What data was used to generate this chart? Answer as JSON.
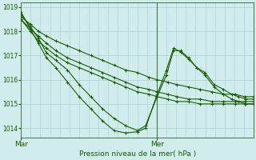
{
  "title": "Pression niveau de la mer( hPa )",
  "bg_color": "#d0ecec",
  "grid_color": "#b0d4d4",
  "line_color": "#1a5c00",
  "marker_color": "#1a5c00",
  "x_ticks_labels": [
    "Mar",
    "Mer"
  ],
  "x_ticks_pos": [
    0.0,
    0.585
  ],
  "ylim": [
    1013.6,
    1019.2
  ],
  "yticks": [
    1014,
    1015,
    1016,
    1017,
    1018,
    1019
  ],
  "vline_x": 0.585,
  "series": [
    {
      "x": [
        0.0,
        0.04,
        0.075,
        0.11,
        0.15,
        0.2,
        0.25,
        0.3,
        0.35,
        0.4,
        0.45,
        0.5,
        0.55,
        0.585,
        0.63,
        0.67,
        0.72,
        0.77,
        0.82,
        0.87,
        0.92,
        0.96,
        1.0
      ],
      "y": [
        1018.6,
        1018.3,
        1018.0,
        1017.8,
        1017.6,
        1017.4,
        1017.2,
        1017.0,
        1016.8,
        1016.6,
        1016.4,
        1016.3,
        1016.1,
        1016.0,
        1015.9,
        1015.8,
        1015.7,
        1015.6,
        1015.5,
        1015.4,
        1015.4,
        1015.3,
        1015.3
      ],
      "has_markers": true
    },
    {
      "x": [
        0.0,
        0.04,
        0.075,
        0.11,
        0.15,
        0.2,
        0.25,
        0.3,
        0.35,
        0.4,
        0.45,
        0.5,
        0.55,
        0.585,
        0.63,
        0.67,
        0.72,
        0.77,
        0.82,
        0.87,
        0.92,
        0.96,
        1.0
      ],
      "y": [
        1018.5,
        1018.1,
        1017.8,
        1017.5,
        1017.2,
        1016.9,
        1016.7,
        1016.5,
        1016.3,
        1016.1,
        1015.9,
        1015.7,
        1015.6,
        1015.5,
        1015.4,
        1015.3,
        1015.2,
        1015.2,
        1015.1,
        1015.1,
        1015.1,
        1015.1,
        1015.1
      ],
      "has_markers": true
    },
    {
      "x": [
        0.0,
        0.04,
        0.075,
        0.11,
        0.15,
        0.2,
        0.25,
        0.3,
        0.35,
        0.4,
        0.45,
        0.5,
        0.55,
        0.585,
        0.63,
        0.67,
        0.72,
        0.77,
        0.82,
        0.87,
        0.92,
        0.96,
        1.0
      ],
      "y": [
        1018.5,
        1018.0,
        1017.6,
        1017.3,
        1017.0,
        1016.7,
        1016.5,
        1016.3,
        1016.1,
        1015.9,
        1015.7,
        1015.5,
        1015.4,
        1015.3,
        1015.2,
        1015.1,
        1015.1,
        1015.0,
        1015.0,
        1015.0,
        1015.0,
        1015.0,
        1015.0
      ],
      "has_markers": true
    },
    {
      "x": [
        0.0,
        0.04,
        0.075,
        0.11,
        0.15,
        0.2,
        0.25,
        0.3,
        0.35,
        0.4,
        0.45,
        0.5,
        0.535,
        0.585,
        0.625,
        0.655,
        0.685,
        0.72,
        0.755,
        0.79,
        0.83,
        0.87,
        0.905,
        0.935,
        0.965,
        1.0
      ],
      "y": [
        1018.7,
        1018.2,
        1017.7,
        1017.1,
        1016.8,
        1016.4,
        1015.8,
        1015.3,
        1014.8,
        1014.4,
        1014.1,
        1013.9,
        1014.1,
        1015.3,
        1016.2,
        1017.2,
        1017.2,
        1016.9,
        1016.5,
        1016.3,
        1015.8,
        1015.6,
        1015.4,
        1015.3,
        1015.2,
        1015.2
      ],
      "has_markers": true
    },
    {
      "x": [
        0.0,
        0.04,
        0.075,
        0.11,
        0.15,
        0.2,
        0.25,
        0.3,
        0.35,
        0.4,
        0.45,
        0.5,
        0.535,
        0.585,
        0.625,
        0.655,
        0.685,
        0.72,
        0.755,
        0.79,
        0.83,
        0.87,
        0.905,
        0.935,
        0.965,
        1.0
      ],
      "y": [
        1018.8,
        1018.1,
        1017.5,
        1016.9,
        1016.5,
        1015.9,
        1015.3,
        1014.8,
        1014.3,
        1013.9,
        1013.8,
        1013.85,
        1014.0,
        1015.4,
        1016.4,
        1017.3,
        1017.15,
        1016.85,
        1016.5,
        1016.2,
        1015.7,
        1015.4,
        1015.2,
        1015.1,
        1015.0,
        1015.0
      ],
      "has_markers": true
    }
  ]
}
